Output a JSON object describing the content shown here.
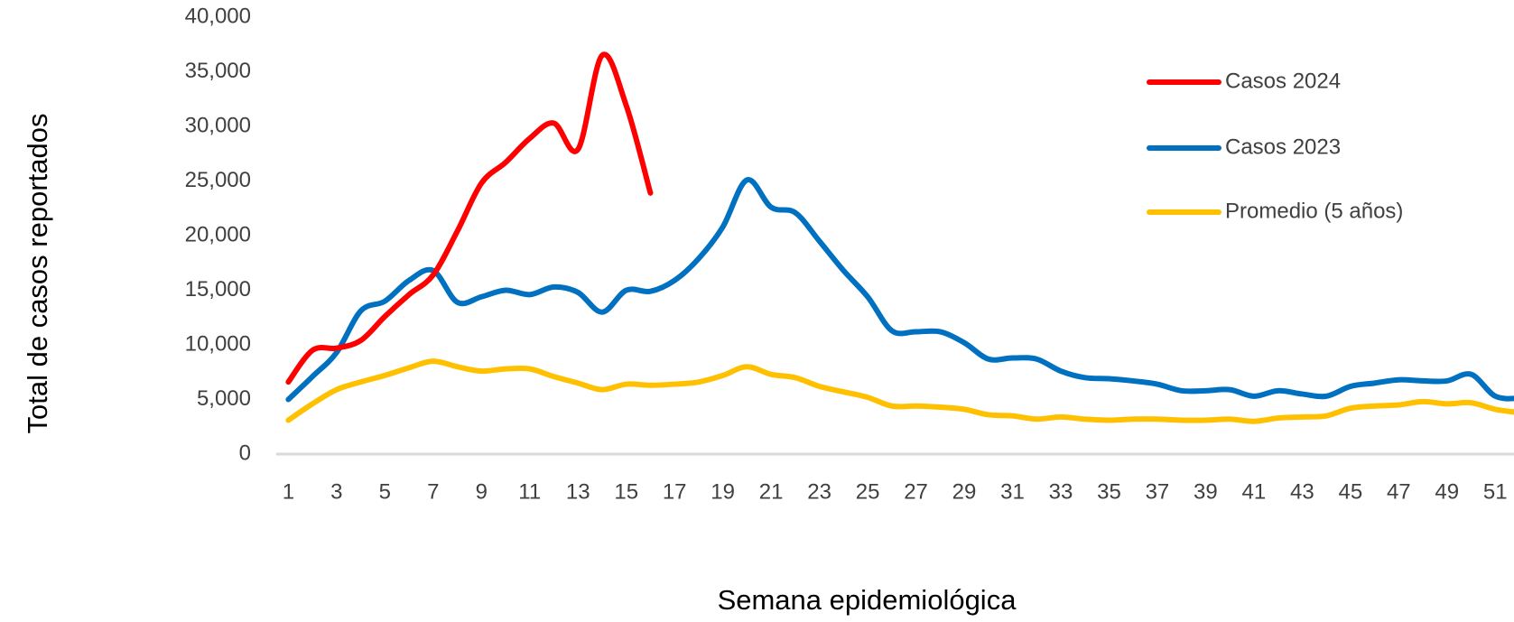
{
  "chart_data": {
    "type": "line",
    "y_label": "Total de casos reportados",
    "x_label": "Semana epidemiológica",
    "x": [
      1,
      2,
      3,
      4,
      5,
      6,
      7,
      8,
      9,
      10,
      11,
      12,
      13,
      14,
      15,
      16,
      17,
      18,
      19,
      20,
      21,
      22,
      23,
      24,
      25,
      26,
      27,
      28,
      29,
      30,
      31,
      32,
      33,
      34,
      35,
      36,
      37,
      38,
      39,
      40,
      41,
      42,
      43,
      44,
      45,
      46,
      47,
      48,
      49,
      50,
      51,
      52
    ],
    "xlim": [
      0.5,
      52
    ],
    "xticks": [
      1,
      3,
      5,
      7,
      9,
      11,
      13,
      15,
      17,
      19,
      21,
      23,
      25,
      27,
      29,
      31,
      33,
      35,
      37,
      39,
      41,
      43,
      45,
      47,
      49,
      51
    ],
    "ylim": [
      0,
      40000
    ],
    "yticks": [
      0,
      {
        "value": 5000,
        "label": "5,000"
      },
      {
        "value": 10000,
        "label": "10,000"
      },
      {
        "value": 15000,
        "label": "15,000"
      },
      {
        "value": 20000,
        "label": "20,000"
      },
      {
        "value": 25000,
        "label": "25,000"
      },
      {
        "value": 30000,
        "label": "30,000"
      },
      {
        "value": 35000,
        "label": "35,000"
      },
      {
        "value": 40000,
        "label": "40,000"
      }
    ],
    "grid": false,
    "legend": "upper right",
    "series": [
      {
        "name": "Casos 2024",
        "color": "#ff0000",
        "values": [
          6600,
          9500,
          9700,
          10400,
          12600,
          14600,
          16400,
          20400,
          24800,
          26700,
          28900,
          30300,
          27900,
          36500,
          31900,
          23900,
          null,
          null,
          null,
          null,
          null,
          null,
          null,
          null,
          null,
          null,
          null,
          null,
          null,
          null,
          null,
          null,
          null,
          null,
          null,
          null,
          null,
          null,
          null,
          null,
          null,
          null,
          null,
          null,
          null,
          null,
          null,
          null,
          null,
          null,
          null,
          null
        ]
      },
      {
        "name": "Casos 2023",
        "color": "#0070c0",
        "values": [
          5000,
          7100,
          9300,
          13100,
          14000,
          15900,
          16800,
          13900,
          14400,
          15000,
          14600,
          15300,
          14800,
          13000,
          15000,
          14900,
          15900,
          17900,
          20800,
          25100,
          22600,
          22100,
          19500,
          16800,
          14400,
          11300,
          11200,
          11200,
          10200,
          8700,
          8800,
          8700,
          7600,
          7000,
          6900,
          6700,
          6400,
          5800,
          5800,
          5900,
          5300,
          5800,
          5500,
          5300,
          6200,
          6500,
          6800,
          6700,
          6700,
          7300,
          5300,
          5100
        ]
      },
      {
        "name": "Promedio (5 años)",
        "color": "#ffc000",
        "values": [
          3100,
          4600,
          5900,
          6600,
          7200,
          7900,
          8500,
          8000,
          7600,
          7800,
          7800,
          7100,
          6500,
          5900,
          6400,
          6300,
          6400,
          6600,
          7200,
          8000,
          7300,
          7000,
          6200,
          5700,
          5200,
          4400,
          4400,
          4300,
          4100,
          3600,
          3500,
          3200,
          3400,
          3200,
          3100,
          3200,
          3200,
          3100,
          3100,
          3200,
          3000,
          3300,
          3400,
          3500,
          4200,
          4400,
          4500,
          4800,
          4600,
          4700,
          4100,
          3800
        ]
      }
    ]
  }
}
